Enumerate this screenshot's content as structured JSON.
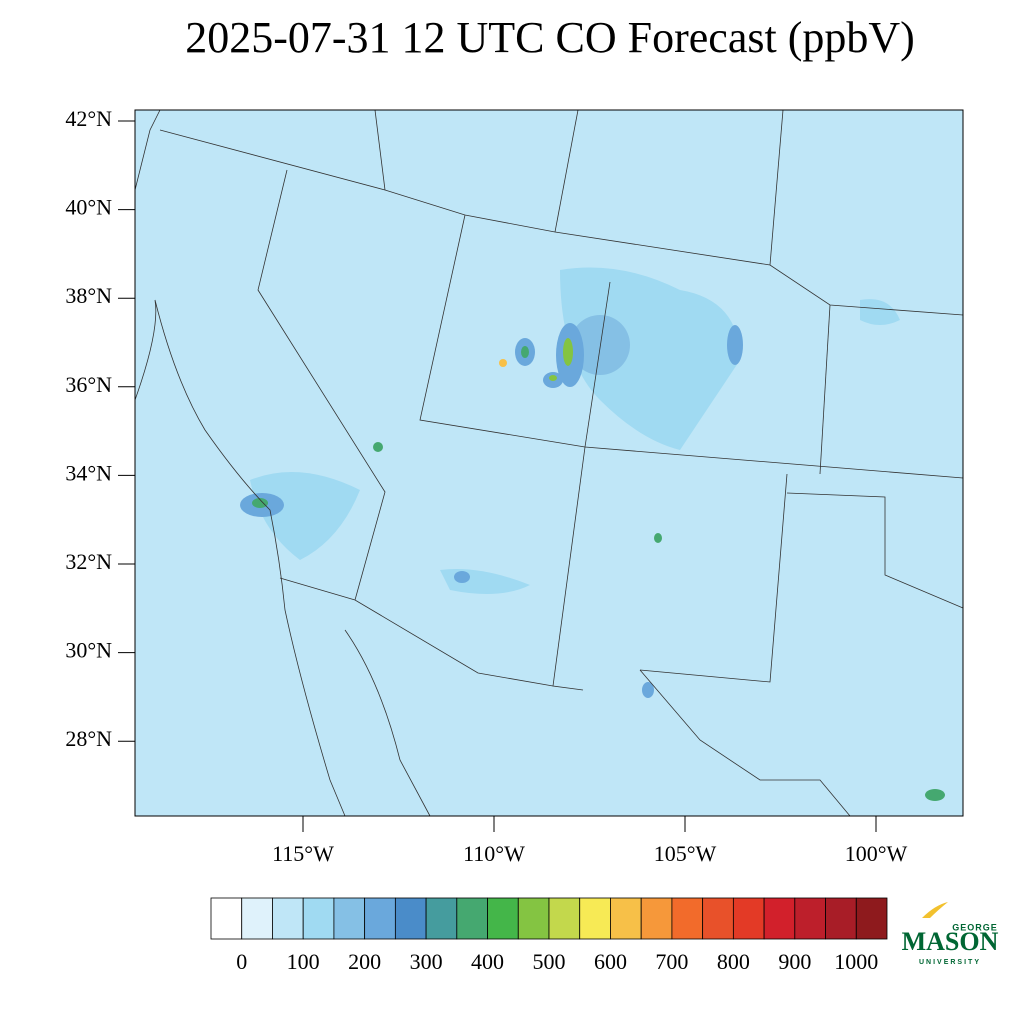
{
  "title": "2025-07-31 12 UTC CO Forecast (ppbV)",
  "map": {
    "lat_ticks": [
      {
        "value": 42,
        "label": "42°N"
      },
      {
        "value": 40,
        "label": "40°N"
      },
      {
        "value": 38,
        "label": "38°N"
      },
      {
        "value": 36,
        "label": "36°N"
      },
      {
        "value": 34,
        "label": "34°N"
      },
      {
        "value": 32,
        "label": "32°N"
      },
      {
        "value": 30,
        "label": "30°N"
      },
      {
        "value": 28,
        "label": "28°N"
      }
    ],
    "lon_ticks": [
      {
        "value": -115,
        "label": "115°W"
      },
      {
        "value": -110,
        "label": "110°W"
      },
      {
        "value": -105,
        "label": "105°W"
      },
      {
        "value": -100,
        "label": "100°W"
      }
    ]
  },
  "colorbar": {
    "colors": [
      "#ffffff",
      "#dff2fb",
      "#bfe6f7",
      "#a0daf2",
      "#85c0e5",
      "#6aa8dc",
      "#4a8cc9",
      "#459c9e",
      "#45a870",
      "#44b649",
      "#84c442",
      "#c3d84c",
      "#f7ea55",
      "#f7c048",
      "#f6983a",
      "#f26b2b",
      "#e8512a",
      "#e33a26",
      "#d2202b",
      "#bd1f2b",
      "#a81d27",
      "#8e1a1d"
    ],
    "ticks": [
      0,
      100,
      200,
      300,
      400,
      500,
      600,
      700,
      800,
      900,
      1000
    ]
  },
  "logo": {
    "top": "GEORGE",
    "main": "MASON",
    "bottom": "UNIVERSITY"
  }
}
